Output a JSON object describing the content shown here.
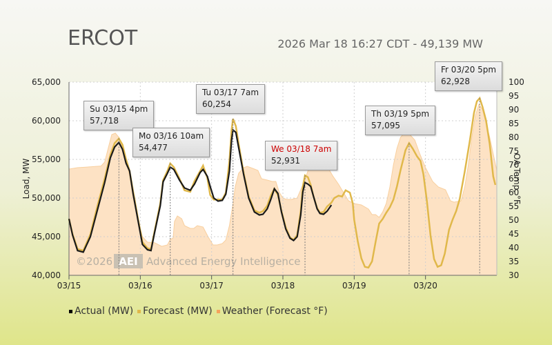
{
  "title": "ERCOT",
  "timestamp": "2026 Mar 18 16:27 CDT - 49,139 MW",
  "watermark": "©2026",
  "watermark_logo": "AEI",
  "watermark_text": "Advanced Energy Intelligence",
  "legend": [
    {
      "label": "Actual (MW)",
      "color": "#000000"
    },
    {
      "label": "Forecast (MW)",
      "color": "#e0b84a"
    },
    {
      "label": "Weather (Forecast °F)",
      "color": "#f5a35c"
    }
  ],
  "annotations": [
    {
      "when": "Su 03/15 4pm",
      "value": "57,718",
      "highlight": false
    },
    {
      "when": "Mo 03/16 10am",
      "value": "54,477",
      "highlight": false
    },
    {
      "when": "Tu 03/17 7am",
      "value": "60,254",
      "highlight": false
    },
    {
      "when": "We 03/18 7am",
      "value": "52,931",
      "highlight": true
    },
    {
      "when": "Th 03/19 5pm",
      "value": "57,095",
      "highlight": false
    },
    {
      "when": "Fr 03/20 5pm",
      "value": "62,928",
      "highlight": false
    }
  ],
  "chart_data": {
    "type": "line",
    "xlabel": "",
    "ylabel": "Load, MW",
    "y2label": "OA Temp, °F",
    "xticks": [
      "03/15",
      "03/16",
      "03/17",
      "03/18",
      "03/19",
      "03/20"
    ],
    "ylim": [
      40000,
      65000
    ],
    "yticks": [
      "40,000",
      "45,000",
      "50,000",
      "55,000",
      "60,000",
      "65,000"
    ],
    "y2lim": [
      30,
      100
    ],
    "y2ticks": [
      "30",
      "35",
      "40",
      "45",
      "50",
      "55",
      "60",
      "65",
      "70",
      "75",
      "80",
      "85",
      "90",
      "95",
      "100"
    ],
    "xlim_days": [
      0,
      6
    ],
    "grid": true,
    "series": [
      {
        "name": "Actual (MW)",
        "color": "#1a1a1a",
        "points": [
          [
            0,
            47300
          ],
          [
            0.05,
            45200
          ],
          [
            0.12,
            43200
          ],
          [
            0.2,
            43000
          ],
          [
            0.3,
            45000
          ],
          [
            0.4,
            48500
          ],
          [
            0.5,
            52000
          ],
          [
            0.58,
            55200
          ],
          [
            0.64,
            56600
          ],
          [
            0.7,
            57200
          ],
          [
            0.75,
            56300
          ],
          [
            0.8,
            54500
          ],
          [
            0.85,
            53500
          ],
          [
            0.9,
            50500
          ],
          [
            0.97,
            47000
          ],
          [
            1.03,
            44000
          ],
          [
            1.1,
            43300
          ],
          [
            1.15,
            43200
          ],
          [
            1.2,
            45500
          ],
          [
            1.28,
            49000
          ],
          [
            1.32,
            52100
          ],
          [
            1.38,
            53200
          ],
          [
            1.42,
            54000
          ],
          [
            1.47,
            53700
          ],
          [
            1.55,
            52300
          ],
          [
            1.62,
            51300
          ],
          [
            1.7,
            51000
          ],
          [
            1.76,
            51800
          ],
          [
            1.84,
            53300
          ],
          [
            1.88,
            53700
          ],
          [
            1.94,
            52800
          ],
          [
            1.98,
            51500
          ],
          [
            2.03,
            50000
          ],
          [
            2.09,
            49600
          ],
          [
            2.15,
            49700
          ],
          [
            2.2,
            50500
          ],
          [
            2.25,
            53500
          ],
          [
            2.28,
            57500
          ],
          [
            2.3,
            58800
          ],
          [
            2.34,
            58500
          ],
          [
            2.38,
            56500
          ],
          [
            2.45,
            53000
          ],
          [
            2.52,
            50000
          ],
          [
            2.6,
            48200
          ],
          [
            2.67,
            47800
          ],
          [
            2.72,
            47900
          ],
          [
            2.78,
            48600
          ],
          [
            2.83,
            49800
          ],
          [
            2.88,
            51200
          ],
          [
            2.93,
            50600
          ],
          [
            2.98,
            48200
          ],
          [
            3.04,
            46000
          ],
          [
            3.1,
            44800
          ],
          [
            3.15,
            44500
          ],
          [
            3.2,
            45000
          ],
          [
            3.25,
            47800
          ],
          [
            3.28,
            50800
          ],
          [
            3.31,
            52000
          ],
          [
            3.35,
            51800
          ],
          [
            3.39,
            51500
          ],
          [
            3.43,
            50200
          ],
          [
            3.48,
            48600
          ],
          [
            3.52,
            48000
          ],
          [
            3.57,
            47900
          ],
          [
            3.62,
            48300
          ],
          [
            3.68,
            49100
          ]
        ]
      },
      {
        "name": "Forecast (MW)",
        "color": "#e0b84a",
        "points": [
          [
            0,
            47300
          ],
          [
            0.05,
            45300
          ],
          [
            0.12,
            43400
          ],
          [
            0.2,
            43200
          ],
          [
            0.3,
            45300
          ],
          [
            0.4,
            49000
          ],
          [
            0.5,
            52500
          ],
          [
            0.58,
            55600
          ],
          [
            0.64,
            57100
          ],
          [
            0.7,
            57700
          ],
          [
            0.75,
            56900
          ],
          [
            0.8,
            55000
          ],
          [
            0.85,
            53500
          ],
          [
            0.9,
            50800
          ],
          [
            0.97,
            47200
          ],
          [
            1.03,
            44300
          ],
          [
            1.1,
            43500
          ],
          [
            1.15,
            43400
          ],
          [
            1.2,
            45700
          ],
          [
            1.28,
            49300
          ],
          [
            1.32,
            52300
          ],
          [
            1.38,
            53500
          ],
          [
            1.42,
            54477
          ],
          [
            1.47,
            54000
          ],
          [
            1.55,
            52500
          ],
          [
            1.62,
            51000
          ],
          [
            1.7,
            50800
          ],
          [
            1.76,
            52200
          ],
          [
            1.84,
            53500
          ],
          [
            1.88,
            54200
          ],
          [
            1.94,
            52600
          ],
          [
            1.98,
            50400
          ],
          [
            2.03,
            49800
          ],
          [
            2.09,
            49800
          ],
          [
            2.15,
            49800
          ],
          [
            2.2,
            50700
          ],
          [
            2.25,
            54800
          ],
          [
            2.28,
            58800
          ],
          [
            2.3,
            60254
          ],
          [
            2.34,
            59300
          ],
          [
            2.38,
            57000
          ],
          [
            2.45,
            53200
          ],
          [
            2.52,
            50200
          ],
          [
            2.6,
            48400
          ],
          [
            2.67,
            48100
          ],
          [
            2.72,
            48300
          ],
          [
            2.78,
            49000
          ],
          [
            2.83,
            50300
          ],
          [
            2.88,
            51200
          ],
          [
            2.93,
            50400
          ],
          [
            2.98,
            48300
          ],
          [
            3.04,
            46200
          ],
          [
            3.1,
            44900
          ],
          [
            3.15,
            44600
          ],
          [
            3.2,
            45200
          ],
          [
            3.25,
            48300
          ],
          [
            3.28,
            51500
          ],
          [
            3.31,
            52931
          ],
          [
            3.35,
            52700
          ],
          [
            3.39,
            51700
          ],
          [
            3.43,
            50200
          ],
          [
            3.48,
            48700
          ],
          [
            3.52,
            48100
          ],
          [
            3.57,
            48200
          ],
          [
            3.62,
            48900
          ],
          [
            3.68,
            49400
          ],
          [
            3.72,
            50000
          ],
          [
            3.78,
            50300
          ],
          [
            3.83,
            50200
          ],
          [
            3.88,
            51000
          ],
          [
            3.94,
            50700
          ],
          [
            3.98,
            49300
          ],
          [
            4.0,
            47200
          ],
          [
            4.05,
            44400
          ],
          [
            4.1,
            42200
          ],
          [
            4.15,
            41100
          ],
          [
            4.2,
            41000
          ],
          [
            4.25,
            41800
          ],
          [
            4.3,
            44300
          ],
          [
            4.35,
            46700
          ],
          [
            4.4,
            47300
          ],
          [
            4.45,
            48100
          ],
          [
            4.5,
            48800
          ],
          [
            4.55,
            49800
          ],
          [
            4.6,
            51500
          ],
          [
            4.65,
            53600
          ],
          [
            4.72,
            56200
          ],
          [
            4.77,
            57095
          ],
          [
            4.82,
            56400
          ],
          [
            4.88,
            55400
          ],
          [
            4.93,
            54800
          ],
          [
            4.97,
            53100
          ],
          [
            5.02,
            49600
          ],
          [
            5.07,
            45200
          ],
          [
            5.12,
            42100
          ],
          [
            5.17,
            41100
          ],
          [
            5.22,
            41300
          ],
          [
            5.27,
            42800
          ],
          [
            5.33,
            45900
          ],
          [
            5.38,
            47200
          ],
          [
            5.43,
            48300
          ],
          [
            5.48,
            49900
          ],
          [
            5.55,
            53400
          ],
          [
            5.62,
            57300
          ],
          [
            5.68,
            61000
          ],
          [
            5.72,
            62500
          ],
          [
            5.76,
            62928
          ],
          [
            5.8,
            61800
          ],
          [
            5.85,
            60000
          ],
          [
            5.9,
            57000
          ],
          [
            5.95,
            52800
          ],
          [
            5.98,
            51700
          ]
        ]
      },
      {
        "name": "Weather (Forecast °F)",
        "color": "#f5a35c",
        "unit": "°F",
        "points": [
          [
            0,
            68.5
          ],
          [
            0.12,
            69
          ],
          [
            0.3,
            69.3
          ],
          [
            0.45,
            69.6
          ],
          [
            0.5,
            71
          ],
          [
            0.55,
            76
          ],
          [
            0.6,
            81
          ],
          [
            0.65,
            81.5
          ],
          [
            0.7,
            80
          ],
          [
            0.75,
            76
          ],
          [
            0.8,
            72
          ],
          [
            0.85,
            66
          ],
          [
            0.9,
            58
          ],
          [
            0.97,
            50
          ],
          [
            1.03,
            44
          ],
          [
            1.1,
            42
          ],
          [
            1.2,
            41.8
          ],
          [
            1.3,
            40.5
          ],
          [
            1.38,
            41
          ],
          [
            1.42,
            43
          ],
          [
            1.46,
            43.5
          ],
          [
            1.48,
            49.5
          ],
          [
            1.52,
            51.5
          ],
          [
            1.58,
            50.5
          ],
          [
            1.62,
            48
          ],
          [
            1.7,
            47
          ],
          [
            1.75,
            47
          ],
          [
            1.8,
            48
          ],
          [
            1.88,
            47.5
          ],
          [
            1.95,
            44
          ],
          [
            2.02,
            41
          ],
          [
            2.08,
            41
          ],
          [
            2.15,
            41.5
          ],
          [
            2.2,
            42.8
          ],
          [
            2.25,
            48
          ],
          [
            2.3,
            56
          ],
          [
            2.33,
            62
          ],
          [
            2.38,
            67
          ],
          [
            2.45,
            69
          ],
          [
            2.5,
            69.5
          ],
          [
            2.6,
            68.5
          ],
          [
            2.65,
            68
          ],
          [
            2.7,
            65
          ],
          [
            2.78,
            64.5
          ],
          [
            2.85,
            64
          ],
          [
            2.9,
            64
          ],
          [
            2.95,
            60
          ],
          [
            3.0,
            58
          ],
          [
            3.05,
            57.5
          ],
          [
            3.12,
            57.5
          ],
          [
            3.2,
            58
          ],
          [
            3.3,
            64
          ],
          [
            3.38,
            70
          ],
          [
            3.45,
            72
          ],
          [
            3.5,
            72.5
          ],
          [
            3.55,
            72
          ],
          [
            3.62,
            69.5
          ],
          [
            3.7,
            66
          ],
          [
            3.78,
            63
          ],
          [
            3.85,
            60
          ],
          [
            3.92,
            57
          ],
          [
            4.0,
            56
          ],
          [
            4.1,
            55.5
          ],
          [
            4.2,
            54
          ],
          [
            4.25,
            52
          ],
          [
            4.3,
            52
          ],
          [
            4.35,
            51
          ],
          [
            4.4,
            53
          ],
          [
            4.45,
            56
          ],
          [
            4.5,
            62
          ],
          [
            4.55,
            70
          ],
          [
            4.6,
            76
          ],
          [
            4.65,
            80
          ],
          [
            4.72,
            82
          ],
          [
            4.78,
            81
          ],
          [
            4.85,
            79
          ],
          [
            4.92,
            74
          ],
          [
            5.0,
            69
          ],
          [
            5.1,
            64
          ],
          [
            5.18,
            62
          ],
          [
            5.28,
            61
          ],
          [
            5.35,
            57
          ],
          [
            5.4,
            56.5
          ],
          [
            5.5,
            57
          ],
          [
            5.55,
            62
          ],
          [
            5.6,
            70
          ],
          [
            5.65,
            80
          ],
          [
            5.7,
            88
          ],
          [
            5.75,
            92
          ],
          [
            5.8,
            90
          ],
          [
            5.85,
            85
          ],
          [
            5.9,
            80
          ],
          [
            5.95,
            74
          ],
          [
            6.0,
            68
          ]
        ]
      }
    ]
  }
}
